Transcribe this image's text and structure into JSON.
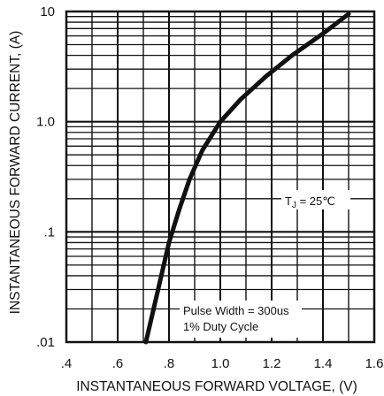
{
  "chart_data": {
    "type": "line",
    "xlabel": "INSTANTANEOUS FORWARD VOLTAGE, (V)",
    "ylabel": "INSTANTANEOUS FORWARD CURRENT, (A)",
    "xlim": [
      0.4,
      1.6
    ],
    "ylim": [
      0.01,
      10
    ],
    "yscale": "log",
    "grid": true,
    "x_ticks": [
      ".4",
      ".6",
      ".8",
      "1.0",
      "1.2",
      "1.4",
      "1.6"
    ],
    "y_ticks": [
      ".01",
      ".1",
      "1.0",
      "10"
    ],
    "series": [
      {
        "x": [
          0.71,
          0.74,
          0.77,
          0.8,
          0.84,
          0.88,
          0.93,
          1.0,
          1.08,
          1.18,
          1.28,
          1.4,
          1.5
        ],
        "y": [
          0.01,
          0.02,
          0.04,
          0.08,
          0.16,
          0.3,
          0.55,
          1.0,
          1.6,
          2.6,
          4.0,
          6.3,
          9.5
        ]
      }
    ],
    "annotations": {
      "tj": "T",
      "tj_sub": "J",
      "tj_value": " = 25",
      "tj_unit": "℃",
      "pulse_line1": "Pulse Width = 300us",
      "pulse_line2": "1% Duty Cycle"
    }
  }
}
